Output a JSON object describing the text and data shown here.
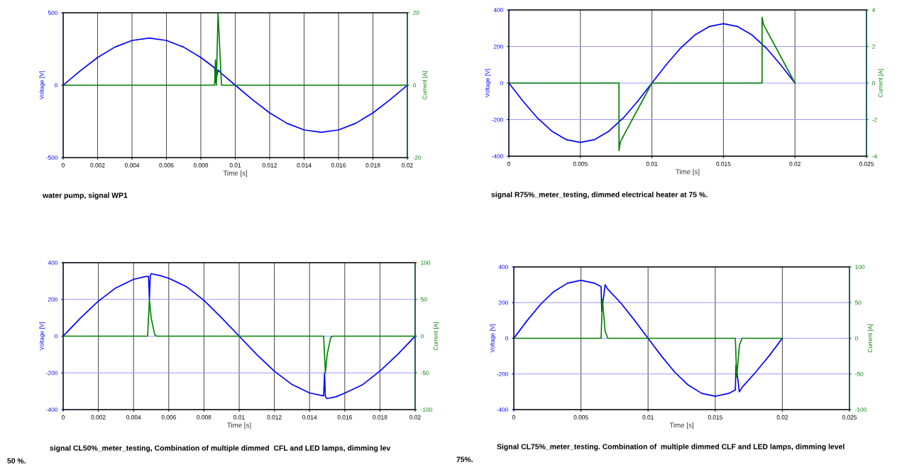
{
  "chart_data": [
    {
      "type": "line",
      "xlabel": "Time [s]",
      "ylabel": "Voltage [V]",
      "y2label": "Current [A]",
      "grid": "x",
      "legend": false,
      "marker": "none",
      "line_style": "solid",
      "xlim": [
        0,
        0.02
      ],
      "xticks": [
        0,
        0.002,
        0.004,
        0.006,
        0.008,
        0.01,
        0.012,
        0.014,
        0.016,
        0.018,
        0.02
      ],
      "ylim": [
        -500,
        500
      ],
      "yticks": [
        -500,
        0,
        500
      ],
      "y2lim": [
        -20,
        20
      ],
      "y2ticks": [
        -20,
        0,
        20
      ],
      "annotations": [
        "water pump, signal WP1"
      ],
      "series": [
        {
          "color": "#0000ff",
          "x": [
            0,
            0.001,
            0.002,
            0.003,
            0.004,
            0.005,
            0.006,
            0.007,
            0.008,
            0.0088,
            0.00885,
            0.009,
            0.0093,
            0.01,
            0.011,
            0.012,
            0.013,
            0.014,
            0.015,
            0.016,
            0.017,
            0.018,
            0.019,
            0.02
          ],
          "values": [
            0,
            100,
            191,
            263,
            309,
            325,
            309,
            263,
            191,
            120,
            20,
            105,
            70,
            0,
            -100,
            -191,
            -263,
            -309,
            -325,
            -309,
            -263,
            -191,
            -100,
            0
          ]
        },
        {
          "color": "#008000",
          "axis": "y2",
          "x": [
            0,
            0.0088,
            0.00885,
            0.0089,
            0.009,
            0.0092,
            0.02
          ],
          "values": [
            0,
            0,
            7,
            0,
            20,
            0,
            0
          ]
        }
      ]
    },
    {
      "type": "line",
      "xlabel": "Time [s]",
      "ylabel": "Voltage [V]",
      "y2label": "Current [A]",
      "grid": true,
      "legend": false,
      "marker": "none",
      "line_style": "solid",
      "xlim": [
        0,
        0.025
      ],
      "xticks": [
        0,
        0.005,
        0.01,
        0.015,
        0.02,
        0.025
      ],
      "ylim": [
        -400,
        400
      ],
      "yticks": [
        -400,
        -200,
        0,
        200,
        400
      ],
      "y2lim": [
        -4,
        4
      ],
      "y2ticks": [
        -4,
        -2,
        0,
        2,
        4
      ],
      "annotations": [
        "signal R75%_meter_testing, dimmed electrical heater at 75 %."
      ],
      "series": [
        {
          "color": "#0000ff",
          "x": [
            0,
            0.001,
            0.002,
            0.003,
            0.004,
            0.005,
            0.006,
            0.007,
            0.008,
            0.009,
            0.01,
            0.011,
            0.012,
            0.013,
            0.014,
            0.015,
            0.016,
            0.017,
            0.018,
            0.019,
            0.02
          ],
          "values": [
            0,
            -100,
            -191,
            -263,
            -309,
            -325,
            -309,
            -263,
            -191,
            -100,
            0,
            100,
            191,
            263,
            309,
            325,
            309,
            263,
            191,
            100,
            0
          ]
        },
        {
          "color": "#008000",
          "axis": "y2",
          "x": [
            0,
            0.0077,
            0.0077,
            0.0078,
            0.01,
            0.0177,
            0.0177,
            0.0178,
            0.02
          ],
          "values": [
            0,
            0,
            -3.7,
            -3.2,
            0,
            0,
            3.6,
            3.2,
            0
          ]
        }
      ]
    },
    {
      "type": "line",
      "xlabel": "Time [s]",
      "ylabel": "Voltage [V]",
      "y2label": "Current [A]",
      "grid": true,
      "legend": false,
      "marker": "none",
      "line_style": "solid",
      "xlim": [
        0,
        0.02
      ],
      "xticks": [
        0,
        0.002,
        0.004,
        0.006,
        0.008,
        0.01,
        0.012,
        0.014,
        0.016,
        0.018,
        0.02
      ],
      "ylim": [
        -400,
        400
      ],
      "yticks": [
        -400,
        -200,
        0,
        200,
        400
      ],
      "y2lim": [
        -100,
        100
      ],
      "y2ticks": [
        -100,
        -50,
        0,
        50,
        100
      ],
      "annotations": [
        "signal CL50%_meter_testing, Combination of multiple dimmed  CFL and LED lamps, dimming lev",
        "50 %."
      ],
      "series": [
        {
          "color": "#0000ff",
          "x": [
            0,
            0.001,
            0.002,
            0.003,
            0.004,
            0.0047,
            0.00485,
            0.0049,
            0.00495,
            0.005,
            0.0055,
            0.006,
            0.007,
            0.008,
            0.009,
            0.01,
            0.011,
            0.012,
            0.013,
            0.014,
            0.0148,
            0.01485,
            0.0149,
            0.015,
            0.0155,
            0.016,
            0.017,
            0.018,
            0.019,
            0.02
          ],
          "values": [
            0,
            100,
            191,
            263,
            309,
            325,
            325,
            200,
            330,
            340,
            330,
            315,
            270,
            195,
            100,
            0,
            -100,
            -191,
            -263,
            -309,
            -325,
            -200,
            -330,
            -340,
            -330,
            -310,
            -265,
            -190,
            -100,
            0
          ]
        },
        {
          "color": "#008000",
          "axis": "y2",
          "x": [
            0,
            0.0048,
            0.0049,
            0.005,
            0.0052,
            0.0053,
            0.0148,
            0.0149,
            0.015,
            0.0152,
            0.0153,
            0.02
          ],
          "values": [
            0,
            0,
            50,
            25,
            2,
            0,
            0,
            -50,
            -25,
            -2,
            0,
            0
          ]
        }
      ]
    },
    {
      "type": "line",
      "xlabel": "Time [s]",
      "ylabel": "Voltage [V]",
      "y2label": "Current [A]",
      "grid": true,
      "legend": false,
      "marker": "none",
      "line_style": "solid",
      "xlim": [
        0,
        0.025
      ],
      "xticks": [
        0,
        0.005,
        0.01,
        0.015,
        0.02,
        0.025
      ],
      "ylim": [
        -400,
        400
      ],
      "yticks": [
        -400,
        -200,
        0,
        200,
        400
      ],
      "y2lim": [
        -100,
        100
      ],
      "y2ticks": [
        -100,
        -50,
        0,
        50,
        100
      ],
      "annotations": [
        "Signal CL75%_meter_testing. Combination of  multiple dimmed CLF and LED lamps, dimming level",
        "75%."
      ],
      "series": [
        {
          "color": "#0000ff",
          "x": [
            0,
            0.001,
            0.002,
            0.003,
            0.004,
            0.005,
            0.006,
            0.0065,
            0.00655,
            0.0068,
            0.007,
            0.008,
            0.009,
            0.01,
            0.011,
            0.012,
            0.013,
            0.014,
            0.015,
            0.016,
            0.0165,
            0.01655,
            0.0168,
            0.017,
            0.018,
            0.019,
            0.02
          ],
          "values": [
            0,
            100,
            191,
            263,
            309,
            325,
            309,
            290,
            150,
            300,
            275,
            195,
            100,
            0,
            -100,
            -191,
            -263,
            -309,
            -325,
            -309,
            -290,
            -150,
            -300,
            -275,
            -191,
            -100,
            0
          ]
        },
        {
          "color": "#008000",
          "axis": "y2",
          "x": [
            0,
            0.0065,
            0.0066,
            0.0068,
            0.007,
            0.0165,
            0.0166,
            0.0168,
            0.017,
            0.02
          ],
          "values": [
            0,
            0,
            55,
            10,
            0,
            0,
            -55,
            -10,
            0,
            0
          ]
        }
      ]
    }
  ]
}
